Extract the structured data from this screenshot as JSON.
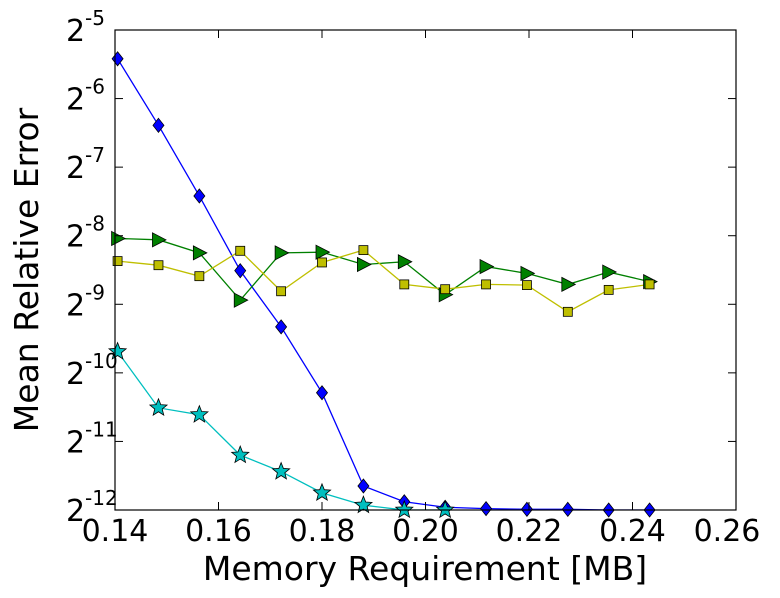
{
  "chart_data": {
    "type": "line",
    "title": "",
    "xlabel": "Memory Requirement [MB]",
    "ylabel": "Mean Relative Error",
    "xlim": [
      0.14,
      0.26
    ],
    "ylim_log2": [
      -12,
      -5
    ],
    "y_scale": "log2",
    "grid": false,
    "x_ticks": [
      "0.14",
      "0.16",
      "0.18",
      "0.20",
      "0.22",
      "0.24",
      "0.26"
    ],
    "y_ticks": [
      {
        "base": "2",
        "exp": "-12"
      },
      {
        "base": "2",
        "exp": "-11"
      },
      {
        "base": "2",
        "exp": "-10"
      },
      {
        "base": "2",
        "exp": "-9"
      },
      {
        "base": "2",
        "exp": "-8"
      },
      {
        "base": "2",
        "exp": "-7"
      },
      {
        "base": "2",
        "exp": "-6"
      },
      {
        "base": "2",
        "exp": "-5"
      }
    ],
    "series": [
      {
        "marker": "diamond",
        "color": "#0000ff",
        "x": [
          0.1405,
          0.1484,
          0.1563,
          0.1642,
          0.1721,
          0.18,
          0.188,
          0.1959,
          0.2038,
          0.2117,
          0.2196,
          0.2275,
          0.2354,
          0.2433
        ],
        "y_log2": [
          -5.42,
          -6.39,
          -7.42,
          -8.51,
          -9.33,
          -10.29,
          -11.65,
          -11.88,
          -11.96,
          -11.98,
          -11.99,
          -11.99,
          -12.0,
          -12.0
        ]
      },
      {
        "marker": "triangle-right",
        "color": "#008000",
        "x": [
          0.1405,
          0.1484,
          0.1563,
          0.1642,
          0.1721,
          0.18,
          0.188,
          0.1959,
          0.2038,
          0.2117,
          0.2196,
          0.2275,
          0.2354,
          0.2433
        ],
        "y_log2": [
          -8.04,
          -8.06,
          -8.25,
          -8.94,
          -8.25,
          -8.24,
          -8.42,
          -8.38,
          -8.86,
          -8.45,
          -8.55,
          -8.71,
          -8.53,
          -8.67
        ]
      },
      {
        "marker": "square",
        "color": "#bfbf00",
        "x": [
          0.1405,
          0.1484,
          0.1563,
          0.1642,
          0.1721,
          0.18,
          0.188,
          0.1959,
          0.2038,
          0.2117,
          0.2196,
          0.2275,
          0.2354,
          0.2433
        ],
        "y_log2": [
          -8.37,
          -8.43,
          -8.59,
          -8.22,
          -8.81,
          -8.39,
          -8.21,
          -8.71,
          -8.78,
          -8.71,
          -8.72,
          -9.11,
          -8.79,
          -8.71
        ]
      },
      {
        "marker": "star",
        "color": "#00bfbf",
        "x": [
          0.1405,
          0.1484,
          0.1563,
          0.1642,
          0.1721,
          0.18,
          0.188,
          0.1959,
          0.2038
        ],
        "y_log2": [
          -9.69,
          -10.51,
          -10.61,
          -11.2,
          -11.44,
          -11.75,
          -11.93,
          -12.0,
          -12.0
        ]
      }
    ]
  }
}
